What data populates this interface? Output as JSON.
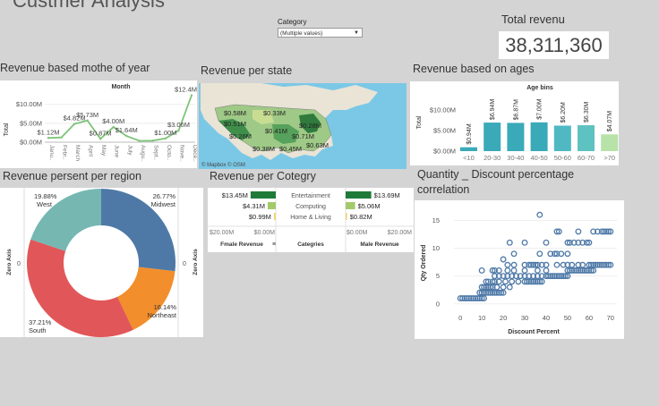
{
  "dashboard": {
    "title": "Custmer Analysis"
  },
  "filter": {
    "label": "Category",
    "value": "(Multiple values)"
  },
  "kpi": {
    "label": "Total revenu",
    "value": "38,311,360"
  },
  "sections": {
    "month": "Revenue based mothe of year",
    "state": "Revenue per state",
    "ages": "Revenue based on ages",
    "region": "Revenue persent per region",
    "category": "Revenue per Cotegry",
    "quantity_line1": "Quantity _ Discount percentage",
    "quantity_line2": "correlation"
  },
  "month_chart": {
    "header": "Month",
    "ylabel": "Total",
    "yticks": [
      "$10.00M",
      "$5.00M",
      "$0.00M"
    ],
    "months": [
      "Janu..",
      "Febr..",
      "March",
      "April",
      "May",
      "June",
      "July",
      "Augu..",
      "Sept..",
      "Octo..",
      "Nove..",
      "Dece.."
    ],
    "values": [
      1.12,
      1.25,
      4.82,
      5.73,
      0.87,
      4.0,
      1.64,
      0.35,
      0.4,
      1.0,
      3.06,
      12.4
    ],
    "labels": [
      "$1.12M",
      "",
      "$4.82M",
      "$5.73M",
      "$0.87M",
      "$4.00M",
      "$1.64M",
      "",
      "",
      "$1.00M",
      "$3.06M",
      "$12.4M"
    ],
    "ylim": [
      0,
      13
    ]
  },
  "map": {
    "labels": [
      "$0.58M",
      "$0.33M",
      "$0.51M",
      "$0.28M",
      "$0.26M",
      "$0.41M",
      "$0.71M",
      "$0.38M",
      "$0.45M",
      "$0.63M"
    ],
    "attribution": "© Mapbox  © OSM"
  },
  "age_chart": {
    "header": "Age bins",
    "ylabel": "Total",
    "yticks": [
      "$10.00M",
      "$5.00M",
      "$0.00M"
    ],
    "categories": [
      "<10",
      "20-30",
      "30-40",
      "40-50",
      "50-60",
      "60-70",
      ">70"
    ],
    "values": [
      0.94,
      6.94,
      6.87,
      7.0,
      6.2,
      6.3,
      4.07
    ],
    "labels": [
      "$0.94M",
      "$6.94M",
      "$6.87M",
      "$7.00M",
      "$6.20M",
      "$6.30M",
      "$4.07M"
    ],
    "colors": [
      "#3aaab9",
      "#3aaab9",
      "#3aaab9",
      "#3aaab9",
      "#4fb8c3",
      "#5ec2c0",
      "#b7e2a8"
    ],
    "ylim": [
      0,
      10
    ]
  },
  "region_chart": {
    "ylabel": "Zero Axis",
    "zero_label": "0",
    "slices": [
      {
        "name": "Midwest",
        "pct": 26.77,
        "label": "26.77%",
        "color": "#4e79a7"
      },
      {
        "name": "Northeast",
        "pct": 16.14,
        "label": "16.14%",
        "color": "#f28e2b"
      },
      {
        "name": "South",
        "pct": 37.21,
        "label": "37.21%",
        "color": "#e15759"
      },
      {
        "name": "West",
        "pct": 19.88,
        "label": "19.88%",
        "color": "#76b7b2"
      }
    ]
  },
  "category_chart": {
    "categories": [
      "Entertainment",
      "Computing",
      "Home & Living"
    ],
    "female_values": [
      13.45,
      4.31,
      0.99
    ],
    "female_labels": [
      "$13.45M",
      "$4.31M",
      "$0.99M"
    ],
    "male_values": [
      13.69,
      5.06,
      0.82
    ],
    "male_labels": [
      "$13.69M",
      "$5.06M",
      "$0.82M"
    ],
    "colors": [
      "#1f7a3a",
      "#a3c96a",
      "#f2d479"
    ],
    "axis_ticks": [
      "$20.00M",
      "$0.00M",
      "$0.00M",
      "$20.00M"
    ],
    "female_header": "Fmale Revenue",
    "category_header": "Categries",
    "male_header": "Male Revenue",
    "xlim": [
      0,
      20
    ]
  },
  "scatter_chart": {
    "xlabel": "Discount Percent",
    "ylabel": "Qty Ordered",
    "xticks": [
      0,
      10,
      20,
      30,
      40,
      50,
      60,
      70
    ],
    "yticks": [
      0,
      5,
      10,
      15
    ],
    "xlim": [
      -3,
      73
    ],
    "ylim": [
      -1,
      17
    ],
    "points": [
      [
        0,
        1
      ],
      [
        1,
        1
      ],
      [
        2,
        1
      ],
      [
        3,
        1
      ],
      [
        4,
        1
      ],
      [
        5,
        1
      ],
      [
        6,
        1
      ],
      [
        7,
        1
      ],
      [
        8,
        1
      ],
      [
        9,
        1
      ],
      [
        10,
        1
      ],
      [
        11,
        1
      ],
      [
        9,
        2
      ],
      [
        10,
        2
      ],
      [
        11,
        2
      ],
      [
        12,
        2
      ],
      [
        13,
        2
      ],
      [
        14,
        2
      ],
      [
        15,
        2
      ],
      [
        16,
        2
      ],
      [
        17,
        2
      ],
      [
        18,
        2
      ],
      [
        19,
        2
      ],
      [
        20,
        2
      ],
      [
        10,
        3
      ],
      [
        11,
        3
      ],
      [
        12,
        3
      ],
      [
        13,
        3
      ],
      [
        14,
        3
      ],
      [
        15,
        3
      ],
      [
        17,
        3
      ],
      [
        20,
        3
      ],
      [
        23,
        3
      ],
      [
        12,
        4
      ],
      [
        13,
        4
      ],
      [
        15,
        4
      ],
      [
        16,
        4
      ],
      [
        18,
        4
      ],
      [
        21,
        4
      ],
      [
        24,
        4
      ],
      [
        27,
        4
      ],
      [
        30,
        4
      ],
      [
        31,
        4
      ],
      [
        32,
        4
      ],
      [
        33,
        4
      ],
      [
        34,
        4
      ],
      [
        35,
        4
      ],
      [
        36,
        4
      ],
      [
        37,
        4
      ],
      [
        38,
        4
      ],
      [
        16,
        5
      ],
      [
        18,
        5
      ],
      [
        20,
        5
      ],
      [
        22,
        5
      ],
      [
        24,
        5
      ],
      [
        26,
        5
      ],
      [
        28,
        5
      ],
      [
        30,
        5
      ],
      [
        32,
        5
      ],
      [
        34,
        5
      ],
      [
        36,
        5
      ],
      [
        38,
        5
      ],
      [
        40,
        5
      ],
      [
        41,
        5
      ],
      [
        42,
        5
      ],
      [
        43,
        5
      ],
      [
        44,
        5
      ],
      [
        45,
        5
      ],
      [
        46,
        5
      ],
      [
        47,
        5
      ],
      [
        48,
        5
      ],
      [
        49,
        5
      ],
      [
        50,
        5
      ],
      [
        10,
        6
      ],
      [
        15,
        6
      ],
      [
        16,
        6
      ],
      [
        18,
        6
      ],
      [
        22,
        6
      ],
      [
        25,
        6
      ],
      [
        30,
        6
      ],
      [
        36,
        6
      ],
      [
        40,
        6
      ],
      [
        50,
        6
      ],
      [
        51,
        6
      ],
      [
        52,
        6
      ],
      [
        53,
        6
      ],
      [
        54,
        6
      ],
      [
        55,
        6
      ],
      [
        56,
        6
      ],
      [
        57,
        6
      ],
      [
        58,
        6
      ],
      [
        59,
        6
      ],
      [
        60,
        6
      ],
      [
        61,
        6
      ],
      [
        62,
        6
      ],
      [
        22,
        7
      ],
      [
        25,
        7
      ],
      [
        30,
        7
      ],
      [
        32,
        7
      ],
      [
        33,
        7
      ],
      [
        34,
        7
      ],
      [
        35,
        7
      ],
      [
        36,
        7
      ],
      [
        38,
        7
      ],
      [
        40,
        7
      ],
      [
        45,
        7
      ],
      [
        48,
        7
      ],
      [
        50,
        7
      ],
      [
        52,
        7
      ],
      [
        55,
        7
      ],
      [
        57,
        7
      ],
      [
        60,
        7
      ],
      [
        61,
        7
      ],
      [
        62,
        7
      ],
      [
        63,
        7
      ],
      [
        64,
        7
      ],
      [
        65,
        7
      ],
      [
        66,
        7
      ],
      [
        67,
        7
      ],
      [
        68,
        7
      ],
      [
        69,
        7
      ],
      [
        70,
        7
      ],
      [
        20,
        8
      ],
      [
        25,
        9
      ],
      [
        37,
        9
      ],
      [
        42,
        9
      ],
      [
        44,
        9
      ],
      [
        45,
        9
      ],
      [
        47,
        9
      ],
      [
        50,
        9
      ],
      [
        23,
        11
      ],
      [
        30,
        11
      ],
      [
        40,
        11
      ],
      [
        50,
        11
      ],
      [
        51,
        11
      ],
      [
        53,
        11
      ],
      [
        55,
        11
      ],
      [
        57,
        11
      ],
      [
        59,
        11
      ],
      [
        60,
        11
      ],
      [
        45,
        13
      ],
      [
        46,
        13
      ],
      [
        55,
        13
      ],
      [
        62,
        13
      ],
      [
        64,
        13
      ],
      [
        66,
        13
      ],
      [
        67,
        13
      ],
      [
        68,
        13
      ],
      [
        69,
        13
      ],
      [
        70,
        13
      ],
      [
        37,
        16
      ]
    ]
  }
}
